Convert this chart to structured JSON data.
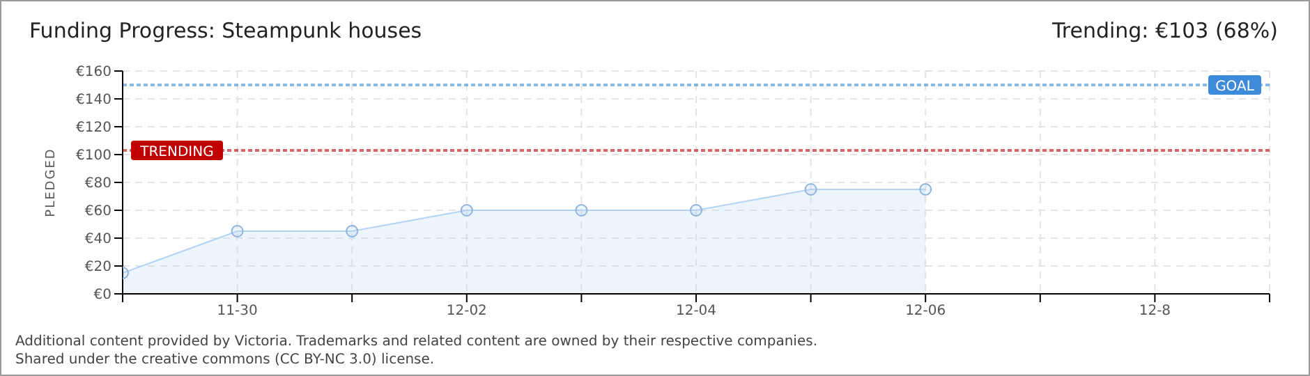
{
  "chart_data": {
    "type": "area",
    "title": "Funding Progress: Steampunk houses",
    "ylabel": "PLEDGED",
    "annotations": [
      "Trending: €103 (68%)",
      "Additional content provided by Victoria. Trademarks and related content are owned by their respective companies.",
      "Shared under the creative commons (CC BY-NC 3.0) license."
    ],
    "categories": [
      null,
      "11-30",
      null,
      "12-02",
      null,
      "12-04",
      null,
      "12-06",
      null,
      "12-8",
      null
    ],
    "series": [
      {
        "color": "#b3d3f3",
        "values": [
          15,
          45,
          45,
          60,
          60,
          60,
          75,
          75,
          null,
          null,
          null
        ]
      }
    ],
    "ylim": [
      0,
      160
    ],
    "yticks": [
      {
        "value": 0,
        "label": "€0"
      },
      {
        "value": 20,
        "label": "€20"
      },
      {
        "value": 40,
        "label": "€40"
      },
      {
        "value": 60,
        "label": "€60"
      },
      {
        "value": 80,
        "label": "€80"
      },
      {
        "value": 100,
        "label": "€100"
      },
      {
        "value": 120,
        "label": "€120"
      },
      {
        "value": 140,
        "label": "€140"
      },
      {
        "value": 160,
        "label": "€160"
      }
    ],
    "ref_lines": [
      {
        "axis": "y",
        "value": 150,
        "label": "GOAL",
        "color": "#3d8bd9",
        "line_style": "dotted"
      },
      {
        "axis": "y",
        "value": 103,
        "label": "TRENDING",
        "color": "#c00000",
        "line_style": "dotted"
      }
    ],
    "grid": true,
    "legend": false,
    "marker": "circle",
    "line_style": "solid"
  }
}
